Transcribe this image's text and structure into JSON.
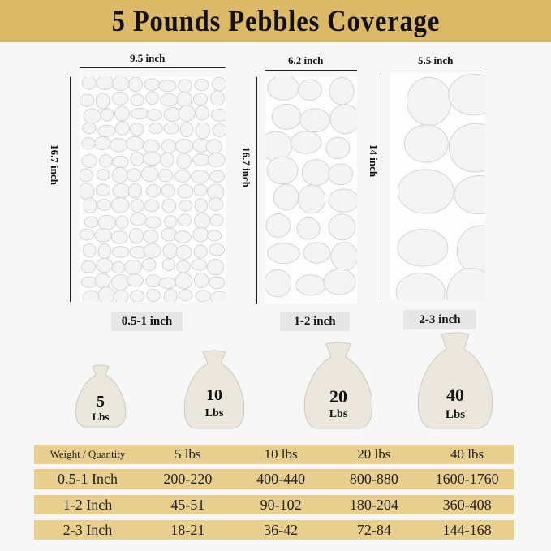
{
  "title": "5 Pounds Pebbles Coverage",
  "colors": {
    "banner": "#dcb964",
    "table_row": "#e8cf8e",
    "label_bg": "#e6e6e6"
  },
  "panels": [
    {
      "width": "9.5 inch",
      "height": "16.7 inch",
      "size": "0.5-1 inch"
    },
    {
      "width": "6.2 inch",
      "height": "16.7 inch",
      "size": "1-2 inch"
    },
    {
      "width": "5.5 inch",
      "height": "14 inch",
      "size": "2-3 inch"
    }
  ],
  "bags": [
    {
      "num": "5",
      "unit": "Lbs"
    },
    {
      "num": "10",
      "unit": "Lbs"
    },
    {
      "num": "20",
      "unit": "Lbs"
    },
    {
      "num": "40",
      "unit": "Lbs"
    }
  ],
  "table": {
    "header": [
      "Weight / Quantity",
      "5 lbs",
      "10 lbs",
      "20 lbs",
      "40 lbs"
    ],
    "rows": [
      [
        "0.5-1 Inch",
        "200-220",
        "400-440",
        "800-880",
        "1600-1760"
      ],
      [
        "1-2 Inch",
        "45-51",
        "90-102",
        "180-204",
        "360-408"
      ],
      [
        "2-3 Inch",
        "18-21",
        "36-42",
        "72-84",
        "144-168"
      ]
    ]
  }
}
